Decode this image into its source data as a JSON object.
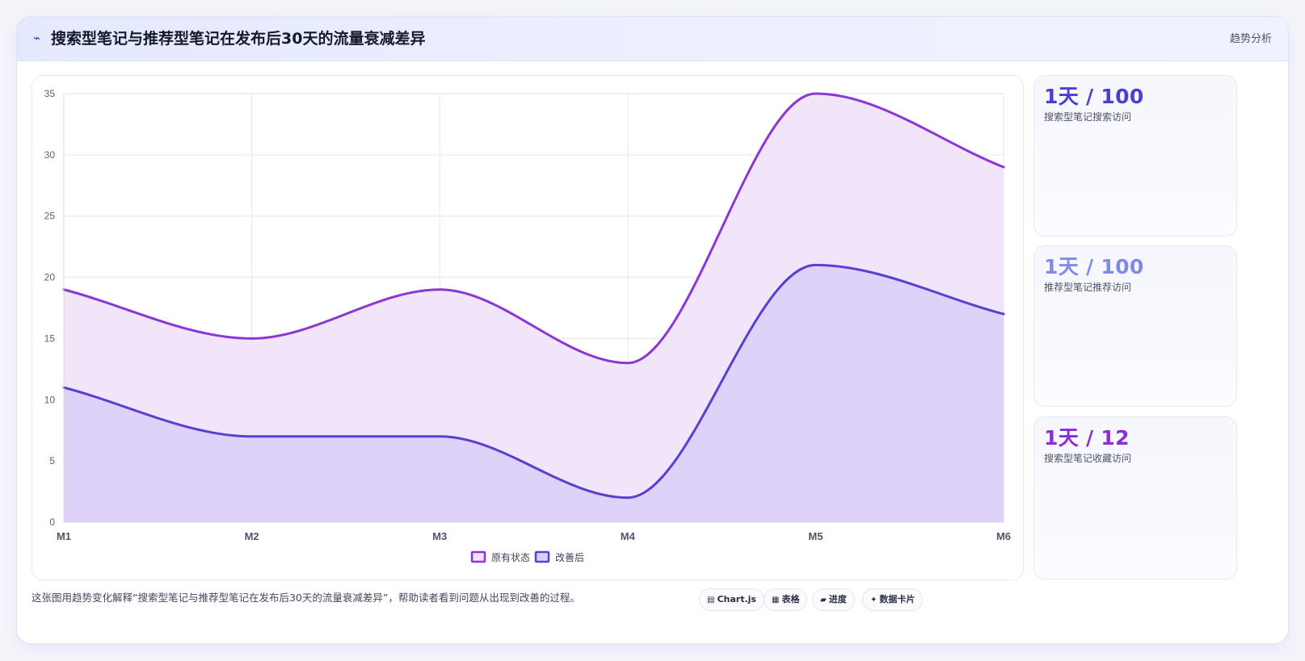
{
  "header": {
    "icon": "trend-line-icon",
    "icon_glyph": "⌁",
    "title": "搜索型笔记与推荐型笔记在发布后30天的流量衰减差异",
    "tag": "趋势分析"
  },
  "kpis": [
    {
      "value": "1天 / 100",
      "label": "搜索型笔记搜索访问",
      "color": "#4b3fd0"
    },
    {
      "value": "1天 / 100",
      "label": "推荐型笔记推荐访问",
      "color": "#7f8be6"
    },
    {
      "value": "1天 / 12",
      "label": "搜索型笔记收藏访问",
      "color": "#8a2fd8"
    }
  ],
  "footer": {
    "note": "这张图用趋势变化解释“搜索型笔记与推荐型笔记在发布后30天的流量衰减差异”，帮助读者看到问题从出现到改善的过程。",
    "chips": [
      {
        "icon": "chart-icon",
        "glyph": "▤",
        "label": "Chart.js"
      },
      {
        "icon": "table-icon",
        "glyph": "▦",
        "label": "表格"
      },
      {
        "icon": "progress-icon",
        "glyph": "▰",
        "label": "进度"
      },
      {
        "icon": "data-card-icon",
        "glyph": "✦",
        "label": "数据卡片"
      }
    ]
  },
  "chart_data": {
    "type": "area",
    "categories": [
      "M1",
      "M2",
      "M3",
      "M4",
      "M5",
      "M6"
    ],
    "series": [
      {
        "name": "原有状态",
        "values": [
          19,
          15,
          19,
          13,
          35,
          29
        ],
        "color": "#8b36d6",
        "fill": "#efe2f9"
      },
      {
        "name": "改善后",
        "values": [
          11,
          7,
          7,
          2,
          21,
          17
        ],
        "color": "#5840d0",
        "fill": "#dccff7"
      }
    ],
    "ylim": [
      0,
      35
    ],
    "yticks": [
      0,
      5,
      10,
      15,
      20,
      25,
      30,
      35
    ],
    "grid": true,
    "legend": "bottom-center",
    "title": "",
    "xlabel": "",
    "ylabel": ""
  }
}
